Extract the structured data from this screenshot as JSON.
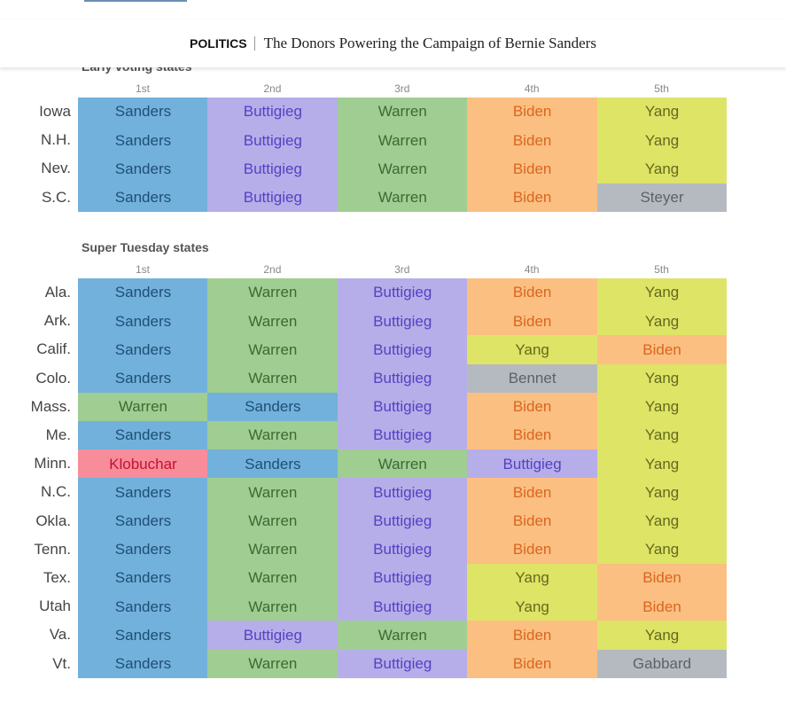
{
  "header": {
    "section": "POLITICS",
    "title": "The Donors Powering the Campaign of Bernie Sanders"
  },
  "candidate_colors": {
    "Sanders": {
      "bg": "#72b1dc",
      "fg": "#1e4f75"
    },
    "Buttigieg": {
      "bg": "#b6aee8",
      "fg": "#5540c4"
    },
    "Warren": {
      "bg": "#a0cd92",
      "fg": "#3b6a33"
    },
    "Biden": {
      "bg": "#fbbf82",
      "fg": "#d9661f"
    },
    "Yang": {
      "bg": "#dde466",
      "fg": "#65691c"
    },
    "Steyer": {
      "bg": "#b4babf",
      "fg": "#5c6267"
    },
    "Bennet": {
      "bg": "#b4babf",
      "fg": "#5c6267"
    },
    "Gabbard": {
      "bg": "#b4babf",
      "fg": "#5c6267"
    },
    "Klobuchar": {
      "bg": "#f78d9a",
      "fg": "#c8102e"
    }
  },
  "tables": [
    {
      "title": "Early voting states",
      "columns": [
        "1st",
        "2nd",
        "3rd",
        "4th",
        "5th"
      ],
      "rows": [
        {
          "state": "Iowa",
          "cells": [
            "Sanders",
            "Buttigieg",
            "Warren",
            "Biden",
            "Yang"
          ]
        },
        {
          "state": "N.H.",
          "cells": [
            "Sanders",
            "Buttigieg",
            "Warren",
            "Biden",
            "Yang"
          ]
        },
        {
          "state": "Nev.",
          "cells": [
            "Sanders",
            "Buttigieg",
            "Warren",
            "Biden",
            "Yang"
          ]
        },
        {
          "state": "S.C.",
          "cells": [
            "Sanders",
            "Buttigieg",
            "Warren",
            "Biden",
            "Steyer"
          ]
        }
      ]
    },
    {
      "title": "Super Tuesday states",
      "columns": [
        "1st",
        "2nd",
        "3rd",
        "4th",
        "5th"
      ],
      "rows": [
        {
          "state": "Ala.",
          "cells": [
            "Sanders",
            "Warren",
            "Buttigieg",
            "Biden",
            "Yang"
          ]
        },
        {
          "state": "Ark.",
          "cells": [
            "Sanders",
            "Warren",
            "Buttigieg",
            "Biden",
            "Yang"
          ]
        },
        {
          "state": "Calif.",
          "cells": [
            "Sanders",
            "Warren",
            "Buttigieg",
            "Yang",
            "Biden"
          ]
        },
        {
          "state": "Colo.",
          "cells": [
            "Sanders",
            "Warren",
            "Buttigieg",
            "Bennet",
            "Yang"
          ]
        },
        {
          "state": "Mass.",
          "cells": [
            "Warren",
            "Sanders",
            "Buttigieg",
            "Biden",
            "Yang"
          ]
        },
        {
          "state": "Me.",
          "cells": [
            "Sanders",
            "Warren",
            "Buttigieg",
            "Biden",
            "Yang"
          ]
        },
        {
          "state": "Minn.",
          "cells": [
            "Klobuchar",
            "Sanders",
            "Warren",
            "Buttigieg",
            "Yang"
          ]
        },
        {
          "state": "N.C.",
          "cells": [
            "Sanders",
            "Warren",
            "Buttigieg",
            "Biden",
            "Yang"
          ]
        },
        {
          "state": "Okla.",
          "cells": [
            "Sanders",
            "Warren",
            "Buttigieg",
            "Biden",
            "Yang"
          ]
        },
        {
          "state": "Tenn.",
          "cells": [
            "Sanders",
            "Warren",
            "Buttigieg",
            "Biden",
            "Yang"
          ]
        },
        {
          "state": "Tex.",
          "cells": [
            "Sanders",
            "Warren",
            "Buttigieg",
            "Yang",
            "Biden"
          ]
        },
        {
          "state": "Utah",
          "cells": [
            "Sanders",
            "Warren",
            "Buttigieg",
            "Yang",
            "Biden"
          ]
        },
        {
          "state": "Va.",
          "cells": [
            "Sanders",
            "Buttigieg",
            "Warren",
            "Biden",
            "Yang"
          ]
        },
        {
          "state": "Vt.",
          "cells": [
            "Sanders",
            "Warren",
            "Buttigieg",
            "Biden",
            "Gabbard"
          ]
        }
      ]
    }
  ]
}
